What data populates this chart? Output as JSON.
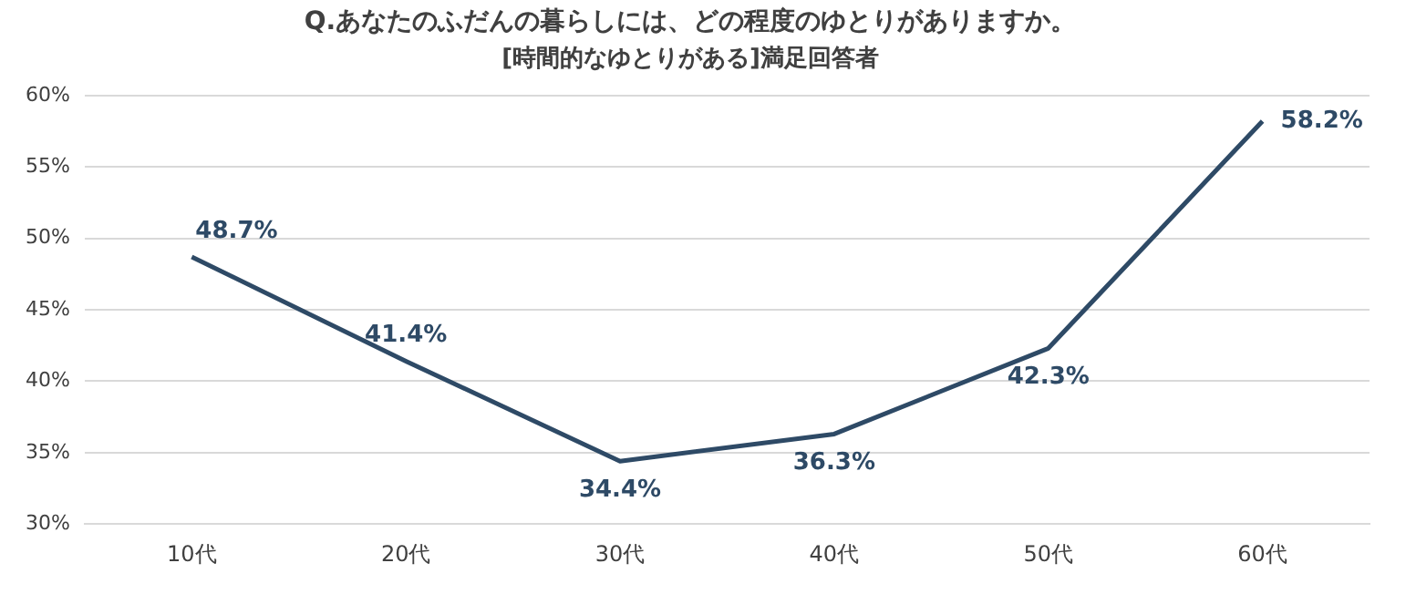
{
  "chart_data": {
    "type": "line",
    "title": "Q.あなたのふだんの暮らしには、どの程度のゆとりがありますか。",
    "subtitle": "[時間的なゆとりがある]満足回答者",
    "categories": [
      "10代",
      "20代",
      "30代",
      "40代",
      "50代",
      "60代"
    ],
    "series": [
      {
        "color": "#2e4a66",
        "values": [
          48.7,
          41.4,
          34.4,
          36.3,
          42.3,
          58.2
        ],
        "value_labels": [
          "48.7%",
          "41.4%",
          "34.4%",
          "36.3%",
          "42.3%",
          "58.2%"
        ]
      }
    ],
    "ylim": [
      30,
      60
    ],
    "yticks": [
      {
        "value": 30,
        "label": "30%"
      },
      {
        "value": 35,
        "label": "35%"
      },
      {
        "value": 40,
        "label": "40%"
      },
      {
        "value": 45,
        "label": "45%"
      },
      {
        "value": 50,
        "label": "50%"
      },
      {
        "value": 55,
        "label": "55%"
      },
      {
        "value": 60,
        "label": "60%"
      }
    ],
    "grid": "y",
    "legend": false,
    "marker": "none",
    "line_style": "solid"
  }
}
